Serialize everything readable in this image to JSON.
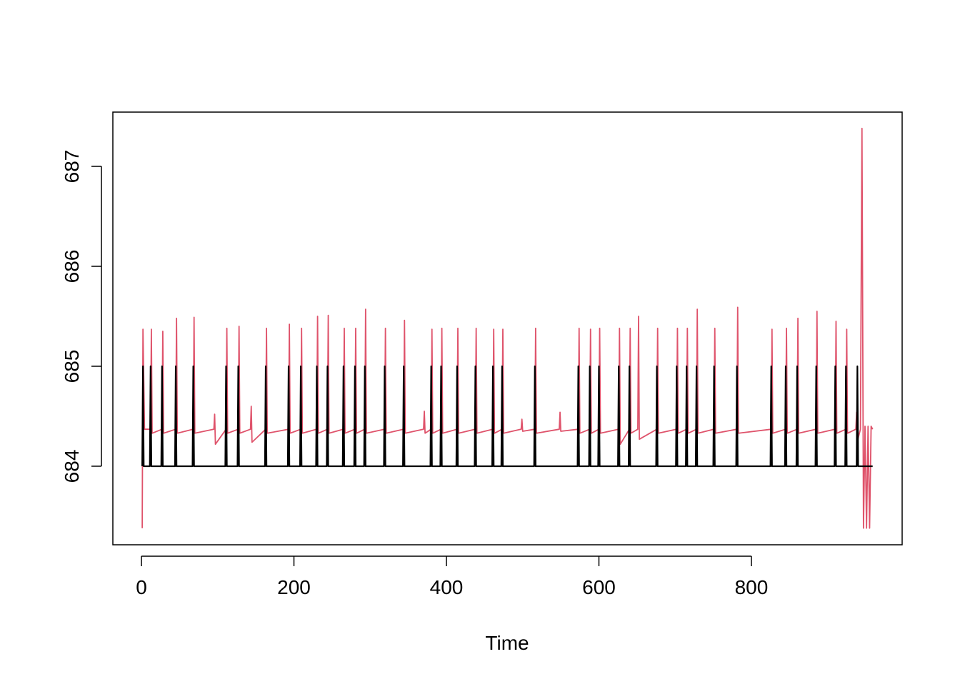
{
  "chart_data": {
    "type": "line",
    "xlabel": "Time",
    "xlim": [
      -37.5,
      997.7
    ],
    "ylim": [
      683.214,
      687.543
    ],
    "xticks": [
      0,
      200,
      400,
      600,
      800
    ],
    "yticks": [
      684,
      685,
      686,
      687
    ],
    "series": [
      {
        "color": "#df536b",
        "x": [
          1,
          2,
          4,
          12,
          13,
          14,
          27,
          28,
          29,
          45,
          46,
          47,
          68,
          69,
          70,
          95,
          96,
          97,
          111,
          112,
          113,
          127,
          128,
          129,
          143,
          144,
          145,
          163,
          164,
          165,
          193,
          194,
          195,
          209,
          210,
          211,
          230,
          231,
          232,
          244,
          245,
          246,
          265,
          266,
          267,
          280,
          281,
          282,
          293,
          294,
          295,
          319,
          320,
          321,
          344,
          345,
          346,
          370,
          371,
          372,
          380,
          381,
          382,
          393,
          394,
          395,
          414,
          415,
          416,
          438,
          439,
          440,
          461,
          462,
          463,
          473,
          474,
          475,
          498,
          499,
          500,
          516,
          517,
          518,
          548,
          549,
          550,
          573,
          574,
          575,
          588,
          589,
          590,
          600,
          601,
          602,
          626,
          627,
          628,
          640,
          641,
          642,
          651,
          652,
          653,
          676,
          677,
          678,
          702,
          703,
          704,
          715,
          716,
          717,
          728,
          729,
          730,
          751,
          752,
          753,
          781,
          782,
          783,
          826,
          827,
          828,
          845,
          846,
          847,
          860,
          861,
          862,
          885,
          886,
          887,
          910,
          911,
          912,
          924,
          925,
          926,
          937,
          938,
          939,
          943,
          945,
          947,
          949,
          951,
          953,
          955,
          957,
          959
        ],
        "values": [
          683.38,
          685.37,
          684.37,
          684.37,
          685.37,
          684.33,
          684.37,
          685.35,
          684.33,
          684.37,
          685.48,
          684.33,
          684.37,
          685.49,
          684.33,
          684.37,
          684.52,
          684.22,
          684.37,
          685.38,
          684.33,
          684.37,
          685.4,
          684.33,
          684.37,
          684.6,
          684.24,
          684.37,
          685.38,
          684.33,
          684.37,
          685.42,
          684.33,
          684.37,
          685.38,
          684.33,
          684.37,
          685.5,
          684.33,
          684.37,
          685.51,
          684.33,
          684.37,
          685.38,
          684.33,
          684.37,
          685.38,
          684.33,
          684.37,
          685.57,
          684.33,
          684.37,
          685.38,
          684.33,
          684.37,
          685.46,
          684.33,
          684.37,
          684.55,
          684.33,
          684.37,
          685.37,
          684.33,
          684.37,
          685.38,
          684.33,
          684.37,
          685.38,
          684.33,
          684.37,
          685.38,
          684.33,
          684.37,
          685.37,
          684.33,
          684.37,
          685.37,
          684.33,
          684.37,
          684.47,
          684.35,
          684.37,
          685.38,
          684.33,
          684.37,
          684.54,
          684.35,
          684.37,
          685.38,
          684.33,
          684.37,
          685.37,
          684.33,
          684.37,
          685.38,
          684.33,
          684.37,
          685.38,
          684.22,
          684.37,
          685.38,
          684.33,
          684.37,
          685.5,
          684.27,
          684.37,
          685.38,
          684.33,
          684.37,
          685.38,
          684.33,
          684.37,
          685.38,
          684.33,
          684.37,
          685.57,
          684.33,
          684.37,
          685.38,
          684.33,
          684.37,
          685.59,
          684.33,
          684.37,
          685.37,
          684.33,
          684.37,
          685.38,
          684.33,
          684.37,
          685.48,
          684.33,
          684.37,
          685.55,
          684.33,
          684.37,
          685.45,
          684.33,
          684.37,
          685.37,
          684.33,
          684.37,
          684.54,
          684.25,
          684.37,
          687.38,
          683.38,
          684.4,
          683.38,
          684.4,
          683.38,
          684.4,
          684.37
        ]
      },
      {
        "color": "#000000",
        "x": [
          1,
          2,
          3,
          11,
          12,
          13,
          26,
          27,
          28,
          44,
          45,
          46,
          67,
          68,
          69,
          110,
          111,
          112,
          126,
          127,
          128,
          162,
          163,
          164,
          192,
          193,
          194,
          208,
          209,
          210,
          229,
          230,
          231,
          243,
          244,
          245,
          264,
          265,
          266,
          279,
          280,
          281,
          292,
          293,
          294,
          318,
          319,
          320,
          343,
          344,
          345,
          379,
          380,
          381,
          392,
          393,
          394,
          413,
          414,
          415,
          437,
          438,
          439,
          460,
          461,
          462,
          472,
          473,
          474,
          515,
          516,
          517,
          572,
          573,
          574,
          587,
          588,
          589,
          599,
          600,
          601,
          625,
          626,
          627,
          639,
          640,
          641,
          675,
          676,
          677,
          701,
          702,
          703,
          714,
          715,
          716,
          727,
          728,
          729,
          750,
          751,
          752,
          780,
          781,
          782,
          825,
          826,
          827,
          844,
          845,
          846,
          859,
          860,
          861,
          884,
          885,
          886,
          909,
          910,
          911,
          923,
          924,
          925,
          938,
          939,
          940,
          959
        ],
        "values": [
          684,
          685,
          684,
          684,
          685,
          684,
          684,
          685,
          684,
          684,
          685,
          684,
          684,
          685,
          684,
          684,
          685,
          684,
          684,
          685,
          684,
          684,
          685,
          684,
          684,
          685,
          684,
          684,
          685,
          684,
          684,
          685,
          684,
          684,
          685,
          684,
          684,
          685,
          684,
          684,
          685,
          684,
          684,
          685,
          684,
          684,
          685,
          684,
          684,
          685,
          684,
          684,
          685,
          684,
          684,
          685,
          684,
          684,
          685,
          684,
          684,
          685,
          684,
          684,
          685,
          684,
          684,
          685,
          684,
          684,
          685,
          684,
          684,
          685,
          684,
          684,
          685,
          684,
          684,
          685,
          684,
          684,
          685,
          684,
          684,
          685,
          684,
          684,
          685,
          684,
          684,
          685,
          684,
          684,
          685,
          684,
          684,
          685,
          684,
          684,
          685,
          684,
          684,
          685,
          684,
          684,
          685,
          684,
          684,
          685,
          684,
          684,
          685,
          684,
          684,
          685,
          684,
          684,
          685,
          684,
          684,
          685,
          684,
          684,
          685,
          684,
          684
        ]
      }
    ]
  }
}
